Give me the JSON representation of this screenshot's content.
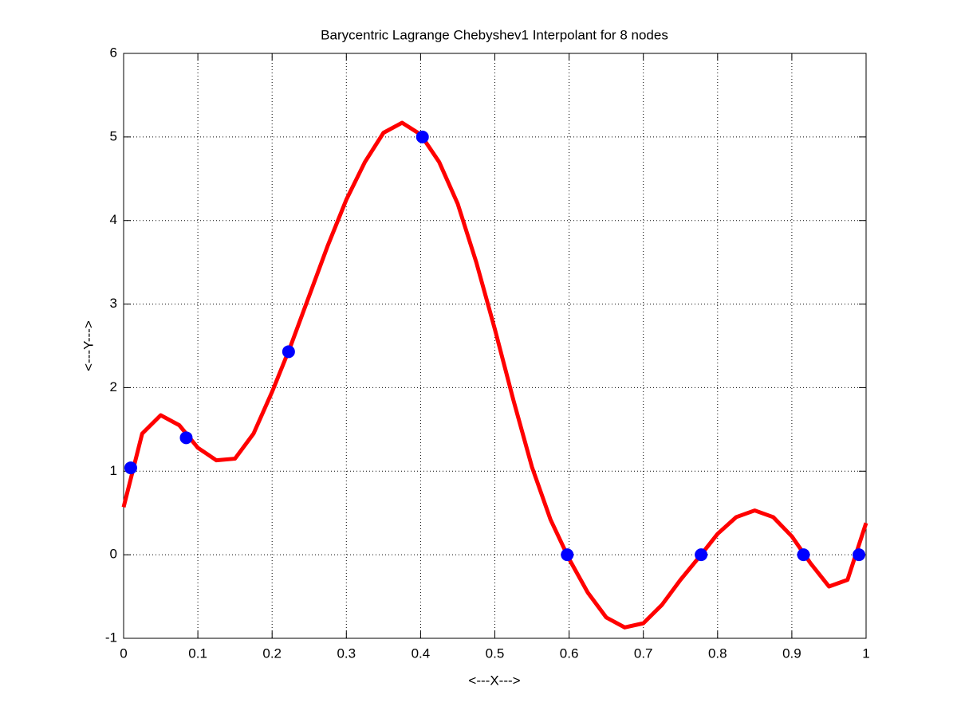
{
  "chart_data": {
    "type": "line",
    "title": "Barycentric Lagrange Chebyshev1 Interpolant for 8 nodes",
    "x_label": "<---X--->",
    "y_label": "<---Y--->",
    "xlim": [
      0,
      1
    ],
    "ylim": [
      -1,
      6
    ],
    "xticks": [
      0,
      0.1,
      0.2,
      0.3,
      0.4,
      0.5,
      0.6,
      0.7,
      0.8,
      0.9,
      1
    ],
    "yticks": [
      -1,
      0,
      1,
      2,
      3,
      4,
      5,
      6
    ],
    "grid": true,
    "series": [
      {
        "kind": "line",
        "color": "#ff0000",
        "x": [
          0,
          0.025,
          0.05,
          0.075,
          0.1,
          0.125,
          0.15,
          0.175,
          0.2,
          0.225,
          0.25,
          0.275,
          0.3,
          0.325,
          0.35,
          0.375,
          0.4,
          0.425,
          0.45,
          0.475,
          0.5,
          0.525,
          0.55,
          0.575,
          0.6,
          0.625,
          0.65,
          0.675,
          0.7,
          0.725,
          0.75,
          0.775,
          0.8,
          0.825,
          0.85,
          0.875,
          0.9,
          0.925,
          0.95,
          0.975,
          1
        ],
        "values": [
          0.57,
          1.45,
          1.67,
          1.55,
          1.28,
          1.13,
          1.15,
          1.45,
          1.95,
          2.5,
          3.1,
          3.7,
          4.25,
          4.7,
          5.05,
          5.17,
          5.03,
          4.7,
          4.2,
          3.5,
          2.7,
          1.85,
          1.05,
          0.42,
          -0.05,
          -0.45,
          -0.75,
          -0.87,
          -0.82,
          -0.6,
          -0.3,
          -0.03,
          0.25,
          0.45,
          0.53,
          0.45,
          0.22,
          -0.1,
          -0.38,
          -0.3,
          0.38
        ]
      },
      {
        "kind": "marker",
        "color": "#0000ff",
        "x": [
          0.0096,
          0.0843,
          0.2222,
          0.4025,
          0.5975,
          0.7778,
          0.9157,
          0.9904
        ],
        "values": [
          1.04,
          1.4,
          2.43,
          5,
          0,
          0,
          0,
          0
        ]
      }
    ]
  }
}
